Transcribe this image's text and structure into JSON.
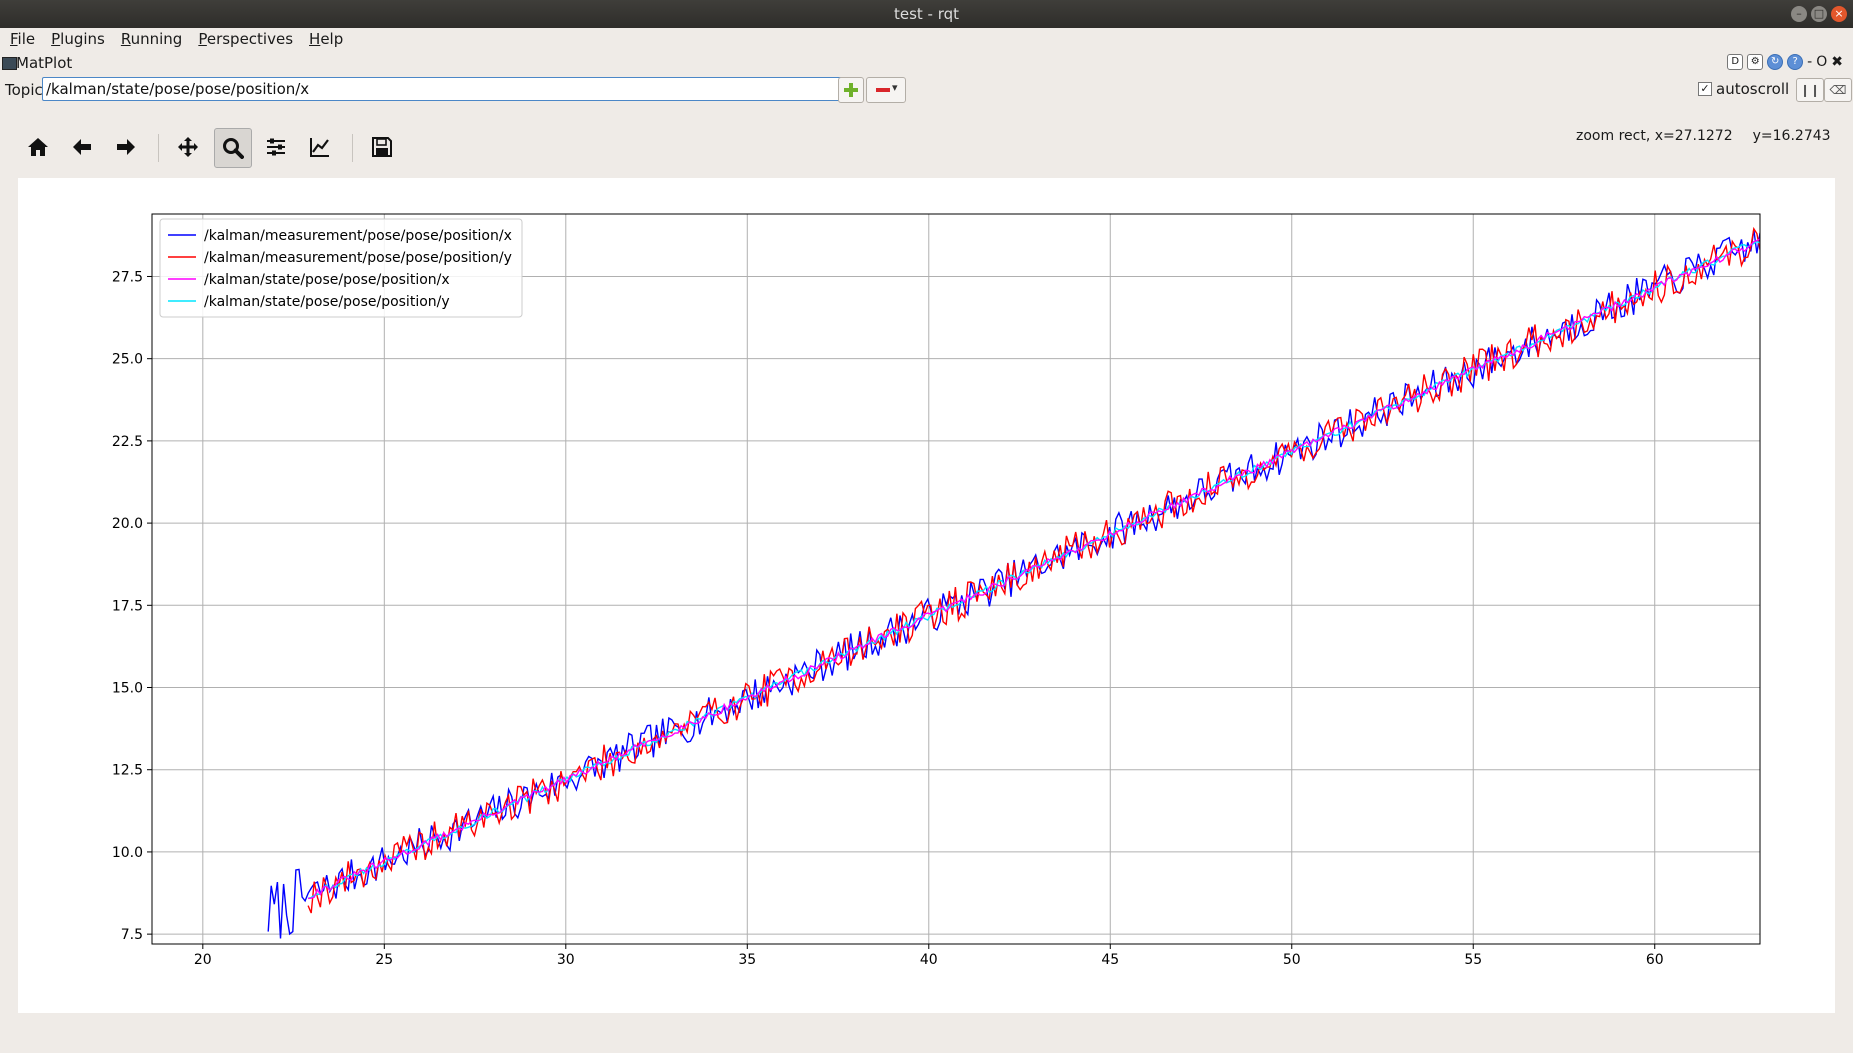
{
  "window": {
    "title": "test - rqt"
  },
  "menu": [
    {
      "label": "File",
      "mnemonic": "F",
      "rest": "ile"
    },
    {
      "label": "Plugins",
      "mnemonic": "P",
      "rest": "lugins"
    },
    {
      "label": "Running",
      "mnemonic": "R",
      "rest": "unning"
    },
    {
      "label": "Perspectives",
      "mnemonic": "P",
      "rest": "erspectives"
    },
    {
      "label": "Help",
      "mnemonic": "H",
      "rest": "elp"
    }
  ],
  "plugin": {
    "title": "MatPlot",
    "head_tools": [
      "D",
      "-",
      "O"
    ]
  },
  "topic": {
    "label": "Topic",
    "value": "/kalman/state/pose/pose/position/x"
  },
  "autoscroll": {
    "label": "autoscroll",
    "checked": true
  },
  "toolbar": {
    "status_mode": "zoom rect, x=27.1272",
    "status_y": "y=16.2743",
    "tools": [
      "home-icon",
      "back-icon",
      "forward-icon",
      "pan-icon",
      "zoom-icon",
      "subplots-icon",
      "edit-curves-icon",
      "save-icon"
    ]
  },
  "colors": {
    "measurement_x": "#0000ff",
    "measurement_y": "#ff0000",
    "state_x": "#ff00ff",
    "state_y": "#00e5ff"
  },
  "chart_data": {
    "type": "line",
    "title": "",
    "xlabel": "",
    "ylabel": "",
    "xlim": [
      18.6,
      62.9
    ],
    "ylim": [
      7.2,
      29.4
    ],
    "xticks": [
      20,
      25,
      30,
      35,
      40,
      45,
      50,
      55,
      60
    ],
    "yticks": [
      7.5,
      10.0,
      12.5,
      15.0,
      17.5,
      20.0,
      22.5,
      25.0,
      27.5
    ],
    "grid": true,
    "legend": "top-left",
    "trend": {
      "x": [
        21.8,
        62.9
      ],
      "y": [
        8.1,
        28.6
      ]
    },
    "series": [
      {
        "name": "/kalman/measurement/pose/pose/position/x",
        "color": "#0000ff",
        "x_start": 21.8,
        "x_end": 62.9,
        "noise": 0.55,
        "seed": 7
      },
      {
        "name": "/kalman/measurement/pose/pose/position/y",
        "color": "#ff0000",
        "x_start": 22.9,
        "x_end": 62.9,
        "noise": 0.55,
        "seed": 19
      },
      {
        "name": "/kalman/state/pose/pose/position/x",
        "color": "#ff00ff",
        "x_start": 22.9,
        "x_end": 62.9,
        "noise": 0.12,
        "seed": 31
      },
      {
        "name": "/kalman/state/pose/pose/position/y",
        "color": "#00e5ff",
        "x_start": 22.9,
        "x_end": 62.9,
        "noise": 0.12,
        "seed": 43
      }
    ]
  }
}
